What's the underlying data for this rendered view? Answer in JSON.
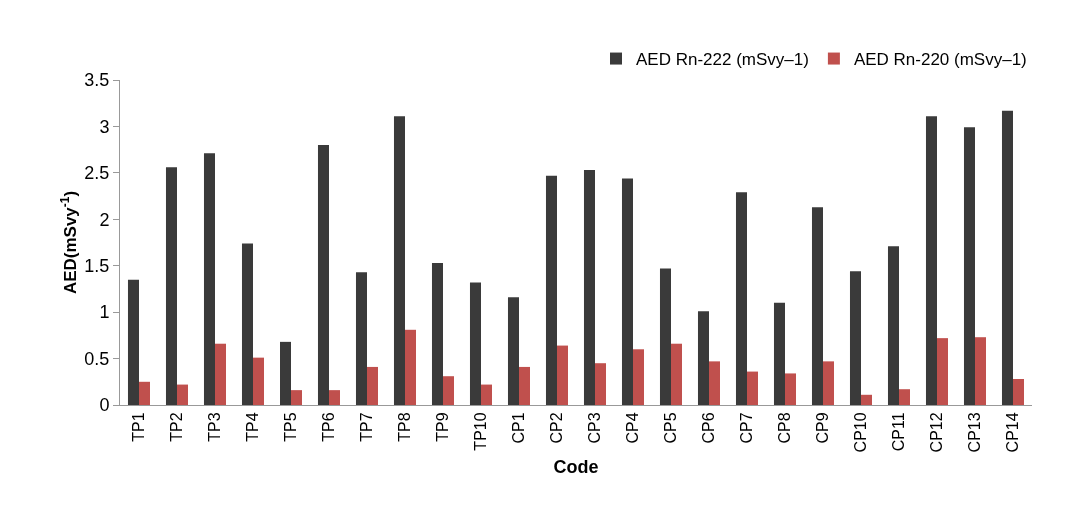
{
  "chart_data": {
    "type": "bar",
    "xlabel": "Code",
    "ylabel": "AED(mSvy$^{-1}$)",
    "categories": [
      "TP1",
      "TP2",
      "TP3",
      "TP4",
      "TP5",
      "TP6",
      "TP7",
      "TP8",
      "TP9",
      "TP10",
      "CP1",
      "CP2",
      "CP3",
      "CP4",
      "CP5",
      "CP6",
      "CP7",
      "CP8",
      "CP9",
      "CP10",
      "CP11",
      "CP12",
      "CP13",
      "CP14"
    ],
    "series": [
      {
        "name": "AED Rn-222 (mSvy–1)",
        "color": "#3a3a3a",
        "values": [
          1.35,
          2.56,
          2.71,
          1.74,
          0.68,
          2.8,
          1.43,
          3.11,
          1.53,
          1.32,
          1.16,
          2.47,
          2.53,
          2.44,
          1.47,
          1.01,
          2.29,
          1.1,
          2.13,
          1.44,
          1.71,
          3.11,
          2.99,
          3.17
        ]
      },
      {
        "name": "AED Rn-220 (mSvy–1)",
        "color": "#c0504d",
        "values": [
          0.25,
          0.22,
          0.66,
          0.51,
          0.16,
          0.16,
          0.41,
          0.81,
          0.31,
          0.22,
          0.41,
          0.64,
          0.45,
          0.6,
          0.66,
          0.47,
          0.36,
          0.34,
          0.47,
          0.11,
          0.17,
          0.72,
          0.73,
          0.28
        ]
      }
    ],
    "ylim": [
      0,
      3.5
    ],
    "yticks": [
      0,
      0.5,
      1,
      1.5,
      2,
      2.5,
      3,
      3.5
    ],
    "grid": false,
    "legend": "top right"
  }
}
